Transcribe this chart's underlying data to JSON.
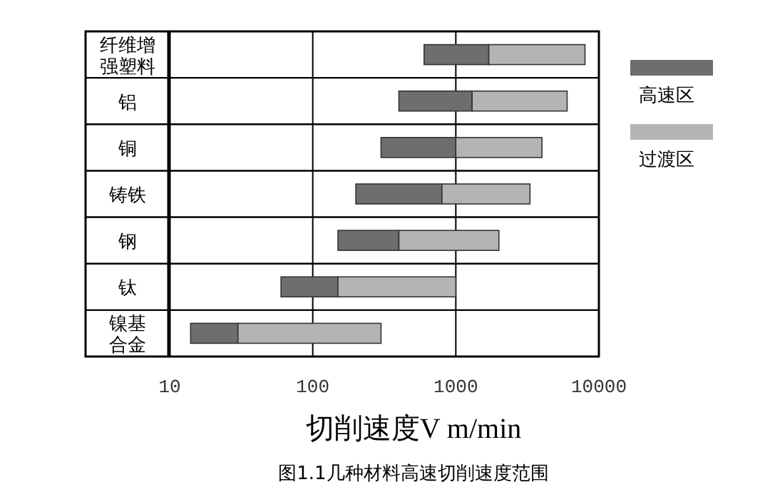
{
  "chart_data": {
    "type": "bar",
    "orientation": "horizontal",
    "log": "x",
    "grid": "x",
    "legend": "right",
    "categories": [
      "纤维增强塑料",
      "铝",
      "铜",
      "铸铁",
      "钢",
      "钛",
      "镍基合金"
    ],
    "xlabel": "切削速度V m/min",
    "xlim": [
      10,
      10000
    ],
    "xticks": [
      10,
      100,
      1000,
      10000
    ],
    "series": [
      {
        "name": "高速区",
        "color": "#6e6e6e",
        "base": [
          600,
          400,
          300,
          200,
          150,
          60,
          14
        ],
        "values": [
          1100,
          900,
          700,
          600,
          250,
          90,
          16
        ]
      },
      {
        "name": "过渡区",
        "color": "#b4b4b4",
        "base": [
          1700,
          1300,
          1000,
          800,
          400,
          150,
          30
        ],
        "values": [
          6300,
          4700,
          3000,
          2500,
          1600,
          850,
          270
        ]
      }
    ],
    "annotations": [
      "图1.1几种材料高速切削速度范围"
    ]
  }
}
